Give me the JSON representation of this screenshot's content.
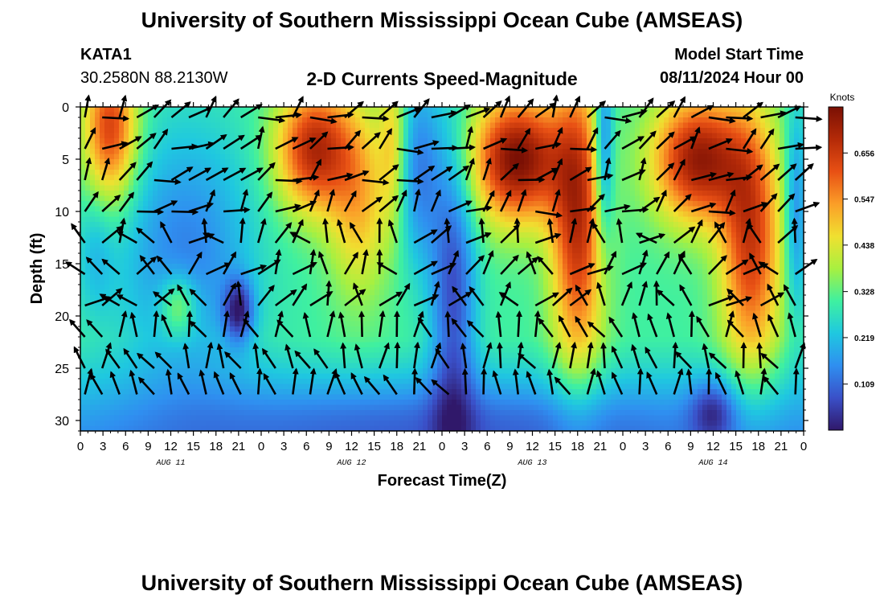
{
  "header": {
    "title": "University of Southern Mississippi Ocean Cube (AMSEAS)",
    "station": "KATA1",
    "coords": "30.2580N  88.2130W",
    "subtitle": "2-D Currents Speed-Magnitude",
    "model_start_label": "Model Start Time",
    "model_start_value": "08/11/2024 Hour 00"
  },
  "footer": {
    "title": "University of Southern Mississippi Ocean Cube (AMSEAS)"
  },
  "chart_data": {
    "type": "heatmap",
    "title": "2-D Currents Speed-Magnitude",
    "xlabel": "Forecast Time(Z)",
    "ylabel": "Depth (ft)",
    "x_tick_labels": [
      "0",
      "3",
      "6",
      "9",
      "12",
      "15",
      "18",
      "21",
      "0",
      "3",
      "6",
      "9",
      "12",
      "15",
      "18",
      "21",
      "0",
      "3",
      "6",
      "9",
      "12",
      "15",
      "18",
      "21",
      "0",
      "3",
      "6",
      "9",
      "12",
      "15",
      "18",
      "21",
      "0"
    ],
    "day_labels": [
      {
        "label": "AUG 11",
        "hour": 12
      },
      {
        "label": "AUG 12",
        "hour": 36
      },
      {
        "label": "AUG 13",
        "hour": 60
      },
      {
        "label": "AUG 14",
        "hour": 84
      }
    ],
    "xlim_hours": [
      0,
      96
    ],
    "y_tick_labels": [
      "0",
      "5",
      "10",
      "15",
      "20",
      "25",
      "30"
    ],
    "ylim": [
      0,
      31
    ],
    "y_inverted": true,
    "colorbar": {
      "label": "Knots",
      "tick_labels": [
        "0.109",
        "0.219",
        "0.328",
        "0.438",
        "0.547",
        "0.656"
      ],
      "tick_values": [
        0.109,
        0.219,
        0.328,
        0.438,
        0.547,
        0.656
      ],
      "range": [
        0,
        0.765
      ],
      "colors": [
        "#30186a",
        "#3a50c8",
        "#2f8ff0",
        "#1fc8e0",
        "#3ff0a0",
        "#a8f040",
        "#f0e030",
        "#fb9e28",
        "#e85014",
        "#b42a08",
        "#7a1004"
      ]
    },
    "vectors": "depth-time current direction arrows (black)"
  }
}
